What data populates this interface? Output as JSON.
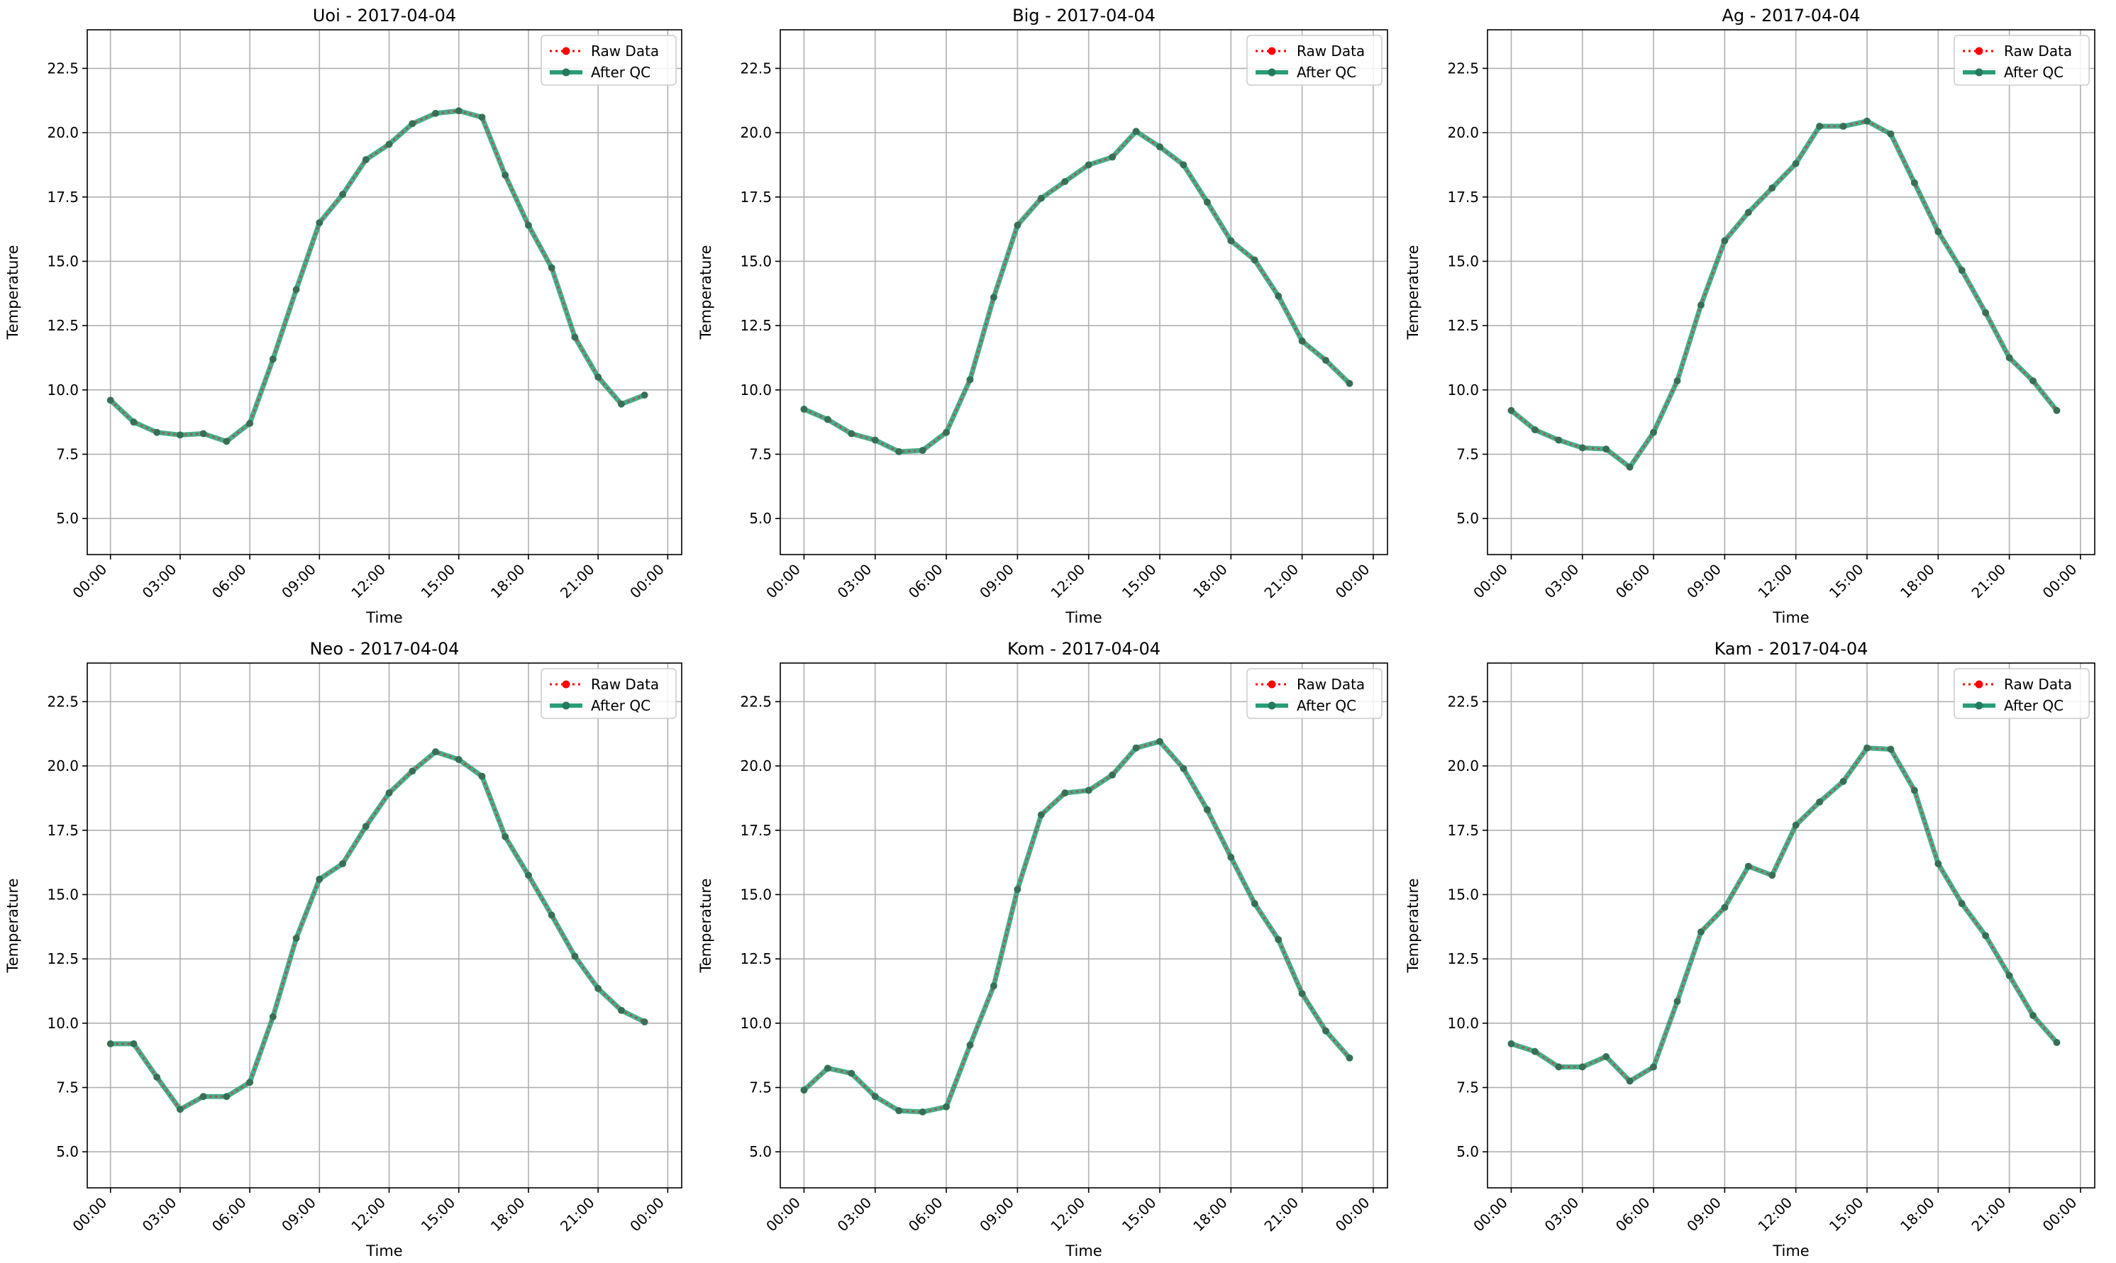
{
  "legend": {
    "raw_label": "Raw Data",
    "qc_label": "After QC"
  },
  "colors": {
    "raw": "#ff0000",
    "qc": "#2a9d78",
    "grid": "#b0b0b0",
    "axis": "#000000"
  },
  "chart_data": [
    {
      "type": "line",
      "title": "Uoi - 2017-04-04",
      "xlabel": "Time",
      "ylabel": "Temperature",
      "x_ticks": [
        "00:00",
        "03:00",
        "06:00",
        "09:00",
        "12:00",
        "15:00",
        "18:00",
        "21:00",
        "00:00"
      ],
      "y_ticks": [
        "5.0",
        "7.5",
        "10.0",
        "12.5",
        "15.0",
        "17.5",
        "20.0",
        "22.5"
      ],
      "ylim": [
        3.6,
        24.0
      ],
      "grid": true,
      "legend_position": "top-right",
      "hours": [
        0,
        1,
        2,
        3,
        4,
        5,
        6,
        7,
        8,
        9,
        10,
        11,
        12,
        13,
        14,
        15,
        16,
        17,
        18,
        19,
        20,
        21,
        22,
        23
      ],
      "series": [
        {
          "name": "Raw Data",
          "values": [
            9.6,
            8.75,
            8.35,
            8.25,
            8.3,
            8.0,
            8.7,
            11.2,
            13.9,
            16.5,
            17.6,
            18.95,
            19.55,
            20.35,
            20.75,
            20.85,
            20.6,
            18.35,
            16.4,
            14.75,
            12.05,
            10.5,
            9.45,
            9.8
          ]
        },
        {
          "name": "After QC",
          "values": [
            9.6,
            8.75,
            8.35,
            8.25,
            8.3,
            8.0,
            8.7,
            11.2,
            13.9,
            16.5,
            17.6,
            18.95,
            19.55,
            20.35,
            20.75,
            20.85,
            20.6,
            18.35,
            16.4,
            14.75,
            12.05,
            10.5,
            9.45,
            9.8
          ]
        }
      ]
    },
    {
      "type": "line",
      "title": "Big - 2017-04-04",
      "xlabel": "Time",
      "ylabel": "Temperature",
      "x_ticks": [
        "00:00",
        "03:00",
        "06:00",
        "09:00",
        "12:00",
        "15:00",
        "18:00",
        "21:00",
        "00:00"
      ],
      "y_ticks": [
        "5.0",
        "7.5",
        "10.0",
        "12.5",
        "15.0",
        "17.5",
        "20.0",
        "22.5"
      ],
      "ylim": [
        3.6,
        24.0
      ],
      "grid": true,
      "legend_position": "top-right",
      "hours": [
        0,
        1,
        2,
        3,
        4,
        5,
        6,
        7,
        8,
        9,
        10,
        11,
        12,
        13,
        14,
        15,
        16,
        17,
        18,
        19,
        20,
        21,
        22,
        23
      ],
      "series": [
        {
          "name": "Raw Data",
          "values": [
            9.25,
            8.85,
            8.3,
            8.05,
            7.6,
            7.65,
            8.35,
            10.4,
            13.6,
            16.4,
            17.45,
            18.1,
            18.75,
            19.05,
            20.05,
            19.45,
            18.75,
            17.3,
            15.8,
            15.05,
            13.65,
            11.9,
            11.15,
            10.25
          ]
        },
        {
          "name": "After QC",
          "values": [
            9.25,
            8.85,
            8.3,
            8.05,
            7.6,
            7.65,
            8.35,
            10.4,
            13.6,
            16.4,
            17.45,
            18.1,
            18.75,
            19.05,
            20.05,
            19.45,
            18.75,
            17.3,
            15.8,
            15.05,
            13.65,
            11.9,
            11.15,
            10.25
          ]
        }
      ]
    },
    {
      "type": "line",
      "title": "Ag - 2017-04-04",
      "xlabel": "Time",
      "ylabel": "Temperature",
      "x_ticks": [
        "00:00",
        "03:00",
        "06:00",
        "09:00",
        "12:00",
        "15:00",
        "18:00",
        "21:00",
        "00:00"
      ],
      "y_ticks": [
        "5.0",
        "7.5",
        "10.0",
        "12.5",
        "15.0",
        "17.5",
        "20.0",
        "22.5"
      ],
      "ylim": [
        3.6,
        24.0
      ],
      "grid": true,
      "legend_position": "top-right",
      "hours": [
        0,
        1,
        2,
        3,
        4,
        5,
        6,
        7,
        8,
        9,
        10,
        11,
        12,
        13,
        14,
        15,
        16,
        17,
        18,
        19,
        20,
        21,
        22,
        23
      ],
      "series": [
        {
          "name": "Raw Data",
          "values": [
            9.2,
            8.45,
            8.05,
            7.75,
            7.7,
            7.0,
            8.35,
            10.35,
            13.3,
            15.8,
            16.9,
            17.85,
            18.8,
            20.25,
            20.25,
            20.45,
            19.95,
            18.05,
            16.15,
            14.65,
            13.0,
            11.25,
            10.35,
            9.2
          ]
        },
        {
          "name": "After QC",
          "values": [
            9.2,
            8.45,
            8.05,
            7.75,
            7.7,
            7.0,
            8.35,
            10.35,
            13.3,
            15.8,
            16.9,
            17.85,
            18.8,
            20.25,
            20.25,
            20.45,
            19.95,
            18.05,
            16.15,
            14.65,
            13.0,
            11.25,
            10.35,
            9.2
          ]
        }
      ]
    },
    {
      "type": "line",
      "title": "Neo - 2017-04-04",
      "xlabel": "Time",
      "ylabel": "Temperature",
      "x_ticks": [
        "00:00",
        "03:00",
        "06:00",
        "09:00",
        "12:00",
        "15:00",
        "18:00",
        "21:00",
        "00:00"
      ],
      "y_ticks": [
        "5.0",
        "7.5",
        "10.0",
        "12.5",
        "15.0",
        "17.5",
        "20.0",
        "22.5"
      ],
      "ylim": [
        3.6,
        24.0
      ],
      "grid": true,
      "legend_position": "top-right",
      "hours": [
        0,
        1,
        2,
        3,
        4,
        5,
        6,
        7,
        8,
        9,
        10,
        11,
        12,
        13,
        14,
        15,
        16,
        17,
        18,
        19,
        20,
        21,
        22,
        23
      ],
      "series": [
        {
          "name": "Raw Data",
          "values": [
            9.2,
            9.2,
            7.9,
            6.65,
            7.15,
            7.15,
            7.7,
            10.25,
            13.3,
            15.6,
            16.2,
            17.65,
            18.95,
            19.8,
            20.55,
            20.25,
            19.6,
            17.25,
            15.75,
            14.2,
            12.6,
            11.35,
            10.5,
            10.05
          ]
        },
        {
          "name": "After QC",
          "values": [
            9.2,
            9.2,
            7.9,
            6.65,
            7.15,
            7.15,
            7.7,
            10.25,
            13.3,
            15.6,
            16.2,
            17.65,
            18.95,
            19.8,
            20.55,
            20.25,
            19.6,
            17.25,
            15.75,
            14.2,
            12.6,
            11.35,
            10.5,
            10.05
          ]
        }
      ]
    },
    {
      "type": "line",
      "title": "Kom - 2017-04-04",
      "xlabel": "Time",
      "ylabel": "Temperature",
      "x_ticks": [
        "00:00",
        "03:00",
        "06:00",
        "09:00",
        "12:00",
        "15:00",
        "18:00",
        "21:00",
        "00:00"
      ],
      "y_ticks": [
        "5.0",
        "7.5",
        "10.0",
        "12.5",
        "15.0",
        "17.5",
        "20.0",
        "22.5"
      ],
      "ylim": [
        3.6,
        24.0
      ],
      "grid": true,
      "legend_position": "top-right",
      "hours": [
        0,
        1,
        2,
        3,
        4,
        5,
        6,
        7,
        8,
        9,
        10,
        11,
        12,
        13,
        14,
        15,
        16,
        17,
        18,
        19,
        20,
        21,
        22,
        23
      ],
      "series": [
        {
          "name": "Raw Data",
          "values": [
            7.4,
            8.25,
            8.05,
            7.15,
            6.6,
            6.55,
            6.75,
            9.15,
            11.45,
            15.2,
            18.1,
            18.95,
            19.05,
            19.65,
            20.7,
            20.95,
            19.9,
            18.3,
            16.45,
            14.65,
            13.25,
            11.15,
            9.7,
            8.65
          ]
        },
        {
          "name": "After QC",
          "values": [
            7.4,
            8.25,
            8.05,
            7.15,
            6.6,
            6.55,
            6.75,
            9.15,
            11.45,
            15.2,
            18.1,
            18.95,
            19.05,
            19.65,
            20.7,
            20.95,
            19.9,
            18.3,
            16.45,
            14.65,
            13.25,
            11.15,
            9.7,
            8.65
          ]
        }
      ]
    },
    {
      "type": "line",
      "title": "Kam - 2017-04-04",
      "xlabel": "Time",
      "ylabel": "Temperature",
      "x_ticks": [
        "00:00",
        "03:00",
        "06:00",
        "09:00",
        "12:00",
        "15:00",
        "18:00",
        "21:00",
        "00:00"
      ],
      "y_ticks": [
        "5.0",
        "7.5",
        "10.0",
        "12.5",
        "15.0",
        "17.5",
        "20.0",
        "22.5"
      ],
      "ylim": [
        3.6,
        24.0
      ],
      "grid": true,
      "legend_position": "top-right",
      "hours": [
        0,
        1,
        2,
        3,
        4,
        5,
        6,
        7,
        8,
        9,
        10,
        11,
        12,
        13,
        14,
        15,
        16,
        17,
        18,
        19,
        20,
        21,
        22,
        23
      ],
      "series": [
        {
          "name": "Raw Data",
          "values": [
            9.2,
            8.9,
            8.3,
            8.3,
            8.7,
            7.75,
            8.3,
            10.85,
            13.55,
            14.5,
            16.1,
            15.75,
            17.7,
            18.6,
            19.4,
            20.7,
            20.65,
            19.05,
            16.2,
            14.65,
            13.4,
            11.85,
            10.3,
            9.25
          ]
        },
        {
          "name": "After QC",
          "values": [
            9.2,
            8.9,
            8.3,
            8.3,
            8.7,
            7.75,
            8.3,
            10.85,
            13.55,
            14.5,
            16.1,
            15.75,
            17.7,
            18.6,
            19.4,
            20.7,
            20.65,
            19.05,
            16.2,
            14.65,
            13.4,
            11.85,
            10.3,
            9.25
          ]
        }
      ]
    }
  ]
}
